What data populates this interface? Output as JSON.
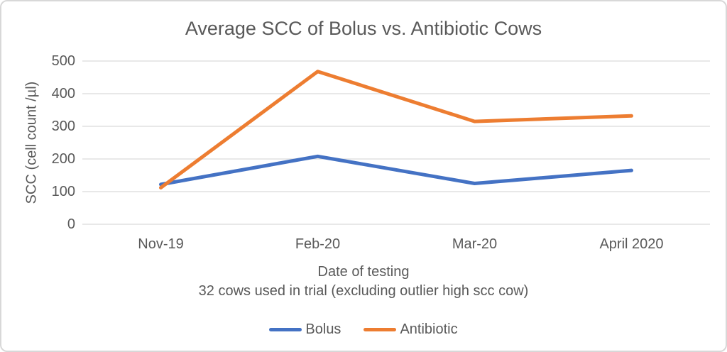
{
  "title": "Average SCC of Bolus vs. Antibiotic Cows",
  "chart_data": {
    "type": "line",
    "title": "Average SCC of Bolus vs. Antibiotic Cows",
    "categories": [
      "Nov-19",
      "Feb-20",
      "Mar-20",
      "April 2020"
    ],
    "series": [
      {
        "name": "Bolus",
        "color": "#4472C4",
        "values": [
          122,
          208,
          125,
          165
        ]
      },
      {
        "name": "Antibiotic",
        "color": "#ED7D31",
        "values": [
          112,
          468,
          315,
          332
        ]
      }
    ],
    "xlabel": "Date of testing",
    "xlabel_note": "32 cows used in trial (excluding outlier high scc cow)",
    "ylabel": "SCC (cell count /µl)",
    "ylim": [
      0,
      500
    ],
    "ytick_step": 100,
    "grid": "horizontal",
    "legend_position": "bottom"
  },
  "colors": {
    "text": "#595959",
    "gridline": "#D9D9D9",
    "frame_border": "#D8D8D8",
    "background": "#FFFFFF"
  }
}
